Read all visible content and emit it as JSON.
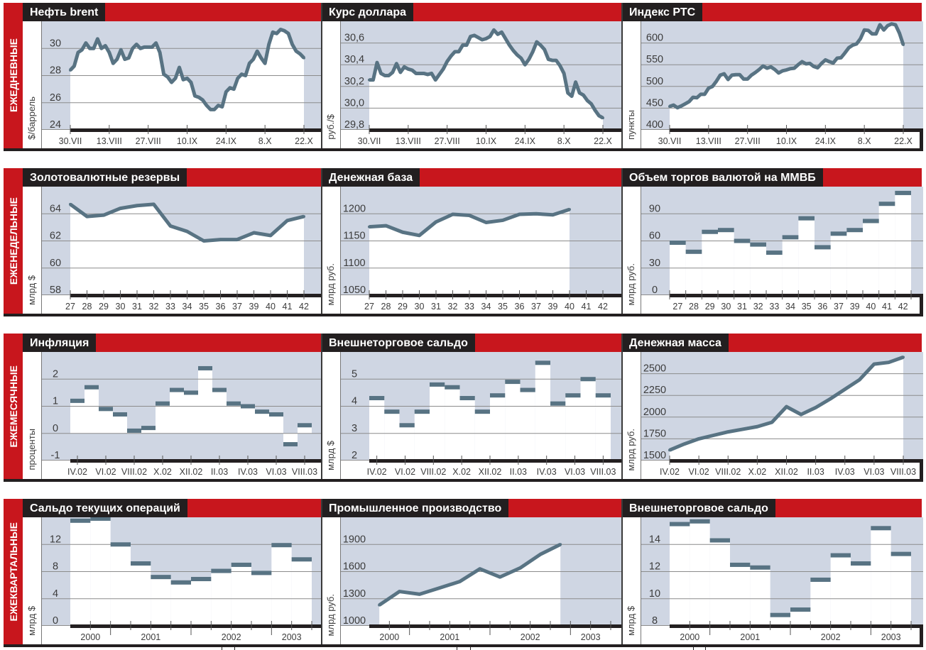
{
  "colors": {
    "brand_red": "#c8161d",
    "title_black": "#231f20",
    "plot_bg": "#cfd6e3",
    "series": "#587383",
    "grid": "#8c8c8c"
  },
  "rows": [
    {
      "period": "ЕЖЕДНЕВНЫЕ"
    },
    {
      "period": "ЕЖЕНЕДЕЛЬНЫЕ"
    },
    {
      "period": "ЕЖЕМЕСЯЧНЫЕ"
    },
    {
      "period": "ЕЖЕКВАРТАЛЬНЫЕ"
    }
  ],
  "chart_data": [
    {
      "type": "line",
      "title": "Нефть brent",
      "ylabel": "$/баррель",
      "ylim": [
        24,
        32
      ],
      "y_ticks": [
        {
          "value": 30,
          "label": "30"
        },
        {
          "value": 28,
          "label": "28"
        },
        {
          "value": 26,
          "label": "26"
        },
        {
          "value": 24,
          "label": "24"
        }
      ],
      "x_tick_labels": [
        "30.VII",
        "13.VIII",
        "27.VIII",
        "10.IX",
        "24.IX",
        "8.X",
        "22.X"
      ],
      "values": [
        28.4,
        28.7,
        29.7,
        29.9,
        30.4,
        30.0,
        30.0,
        30.7,
        30.0,
        30.2,
        29.7,
        28.9,
        29.2,
        29.9,
        29.2,
        29.3,
        30.0,
        30.3,
        30.0,
        30.1,
        30.1,
        30.1,
        30.4,
        29.7,
        28.1,
        27.9,
        27.5,
        27.8,
        28.6,
        27.7,
        27.8,
        27.5,
        26.5,
        26.4,
        26.2,
        25.8,
        25.5,
        25.5,
        25.8,
        25.7,
        26.8,
        27.1,
        27.0,
        27.8,
        28.1,
        28.0,
        28.9,
        29.2,
        29.8,
        29.3,
        28.9,
        30.3,
        31.2,
        31.1,
        31.4,
        31.3,
        31.1,
        30.3,
        29.8,
        29.6,
        29.3
      ]
    },
    {
      "type": "line",
      "title": "Курс доллара",
      "ylabel": "руб./$",
      "ylim": [
        29.8,
        30.8
      ],
      "y_ticks": [
        {
          "value": 30.6,
          "label": "30,6"
        },
        {
          "value": 30.4,
          "label": "30,4"
        },
        {
          "value": 30.2,
          "label": "30,2"
        },
        {
          "value": 30.0,
          "label": "30,0"
        },
        {
          "value": 29.8,
          "label": "29,8"
        }
      ],
      "x_tick_labels": [
        "30.VII",
        "13.VIII",
        "27.VIII",
        "10.IX",
        "24.IX",
        "8.X",
        "22.X"
      ],
      "values": [
        30.26,
        30.26,
        30.42,
        30.32,
        30.3,
        30.3,
        30.33,
        30.41,
        30.33,
        30.38,
        30.36,
        30.35,
        30.32,
        30.32,
        30.32,
        30.31,
        30.32,
        30.26,
        30.31,
        30.36,
        30.43,
        30.48,
        30.52,
        30.52,
        30.58,
        30.58,
        30.66,
        30.67,
        30.65,
        30.63,
        30.64,
        30.66,
        30.72,
        30.68,
        30.7,
        30.64,
        30.58,
        30.53,
        30.49,
        30.46,
        30.4,
        30.45,
        30.52,
        30.61,
        30.58,
        30.54,
        30.45,
        30.44,
        30.44,
        30.39,
        30.32,
        30.14,
        30.11,
        30.24,
        30.14,
        30.12,
        30.07,
        30.04,
        29.98,
        29.93,
        29.91
      ]
    },
    {
      "type": "line",
      "title": "Индекс РТС",
      "ylabel": "пункты",
      "ylim": [
        400,
        650
      ],
      "y_ticks": [
        {
          "value": 600,
          "label": "600"
        },
        {
          "value": 550,
          "label": "550"
        },
        {
          "value": 500,
          "label": "500"
        },
        {
          "value": 450,
          "label": "450"
        },
        {
          "value": 400,
          "label": "400"
        }
      ],
      "x_tick_labels": [
        "30.VII",
        "13.VIII",
        "27.VIII",
        "10.IX",
        "24.IX",
        "8.X",
        "22.X"
      ],
      "values": [
        454,
        457,
        451,
        455,
        460,
        465,
        475,
        474,
        482,
        482,
        496,
        500,
        512,
        526,
        529,
        516,
        526,
        527,
        527,
        517,
        517,
        526,
        532,
        539,
        547,
        542,
        545,
        539,
        531,
        536,
        538,
        541,
        542,
        550,
        557,
        552,
        553,
        546,
        543,
        553,
        561,
        557,
        554,
        565,
        566,
        577,
        589,
        595,
        598,
        610,
        630,
        629,
        621,
        621,
        642,
        630,
        640,
        644,
        642,
        623,
        596
      ]
    },
    {
      "type": "line",
      "title": "Золотовалютные резервы",
      "ylabel": "млрд $",
      "ylim": [
        58,
        66
      ],
      "y_ticks": [
        {
          "value": 64,
          "label": "64"
        },
        {
          "value": 62,
          "label": "62"
        },
        {
          "value": 60,
          "label": "60"
        },
        {
          "value": 58,
          "label": "58"
        }
      ],
      "categories": [
        "27",
        "28",
        "29",
        "30",
        "31",
        "32",
        "33",
        "34",
        "35",
        "36",
        "37",
        "39",
        "40",
        "41",
        "42"
      ],
      "values": [
        64.7,
        63.8,
        63.9,
        64.4,
        64.6,
        64.7,
        63.1,
        62.7,
        62.0,
        62.1,
        62.1,
        62.6,
        62.4,
        63.5,
        63.8
      ]
    },
    {
      "type": "line",
      "title": "Денежная база",
      "ylabel": "млрд руб.",
      "ylim": [
        1050,
        1250
      ],
      "y_ticks": [
        {
          "value": 1200,
          "label": "1200"
        },
        {
          "value": 1150,
          "label": "1150"
        },
        {
          "value": 1100,
          "label": "1100"
        },
        {
          "value": 1050,
          "label": "1050"
        }
      ],
      "categories": [
        "27",
        "28",
        "29",
        "30",
        "31",
        "32",
        "33",
        "34",
        "35",
        "36",
        "37",
        "39",
        "40",
        "41",
        "42"
      ],
      "values": [
        1176,
        1178,
        1166,
        1160,
        1185,
        1199,
        1197,
        1184,
        1188,
        1199,
        1200,
        1198,
        1208,
        null,
        null
      ]
    },
    {
      "type": "bar",
      "title": "Объем торгов валютой на ММВБ",
      "ylabel": "млрд руб.",
      "ylim": [
        0,
        120
      ],
      "y_ticks": [
        {
          "value": 90,
          "label": "90"
        },
        {
          "value": 60,
          "label": "60"
        },
        {
          "value": 30,
          "label": "30"
        },
        {
          "value": 0,
          "label": "0"
        }
      ],
      "categories": [
        "27",
        "28",
        "29",
        "30",
        "31",
        "32",
        "33",
        "34",
        "35",
        "36",
        "37",
        "39",
        "40",
        "41",
        "42"
      ],
      "values": [
        58,
        48,
        70,
        72,
        60,
        56,
        47,
        64,
        85,
        53,
        68,
        72,
        82,
        101,
        113
      ]
    },
    {
      "type": "bar",
      "title": "Инфляция",
      "ylabel": "проценты",
      "ylim": [
        -1,
        3
      ],
      "baseline": 0,
      "y_ticks": [
        {
          "value": 2,
          "label": "2"
        },
        {
          "value": 1,
          "label": "1"
        },
        {
          "value": 0,
          "label": "0"
        },
        {
          "value": -1,
          "label": "-1"
        }
      ],
      "x_tick_labels": [
        "IV.02",
        "VI.02",
        "VIII.02",
        "X.02",
        "XII.02",
        "II.03",
        "IV.03",
        "VI.03",
        "VIII.03"
      ],
      "values": [
        1.2,
        1.7,
        0.9,
        0.7,
        0.1,
        0.2,
        1.1,
        1.6,
        1.5,
        2.4,
        1.6,
        1.1,
        1.0,
        0.8,
        0.7,
        -0.4,
        0.3
      ]
    },
    {
      "type": "bar",
      "title": "Внешнеторговое сальдо",
      "ylabel": "млрд $",
      "ylim": [
        2,
        6
      ],
      "y_ticks": [
        {
          "value": 5,
          "label": "5"
        },
        {
          "value": 4,
          "label": "4"
        },
        {
          "value": 3,
          "label": "3"
        },
        {
          "value": 2,
          "label": "2"
        }
      ],
      "x_tick_labels": [
        "IV.02",
        "VI.02",
        "VIII.02",
        "X.02",
        "XII.02",
        "II.03",
        "IV.03",
        "VI.03",
        "VIII.03"
      ],
      "values": [
        4.3,
        3.8,
        3.3,
        3.8,
        4.8,
        4.7,
        4.3,
        3.8,
        4.4,
        4.9,
        4.6,
        5.6,
        4.1,
        4.4,
        5.0,
        4.4
      ]
    },
    {
      "type": "line",
      "title": "Денежная масса",
      "ylabel": "млрд руб.",
      "ylim": [
        1500,
        2750
      ],
      "y_ticks": [
        {
          "value": 2500,
          "label": "2500"
        },
        {
          "value": 2250,
          "label": "2250"
        },
        {
          "value": 2000,
          "label": "2000"
        },
        {
          "value": 1750,
          "label": "1750"
        },
        {
          "value": 1500,
          "label": "1500"
        }
      ],
      "x_tick_labels": [
        "IV.02",
        "VI.02",
        "VIII.02",
        "X.02",
        "XII.02",
        "II.03",
        "IV.03",
        "VI.03",
        "VIII.03"
      ],
      "values": [
        1620,
        1690,
        1750,
        1790,
        1830,
        1860,
        1890,
        1940,
        2120,
        2030,
        2110,
        2210,
        2320,
        2430,
        2610,
        2630,
        2690
      ]
    },
    {
      "type": "bar",
      "title": "Сальдо текущих операций",
      "ylabel": "млрд $",
      "ylim": [
        0,
        16
      ],
      "y_ticks": [
        {
          "value": 12,
          "label": "12"
        },
        {
          "value": 8,
          "label": "8"
        },
        {
          "value": 4,
          "label": "4"
        },
        {
          "value": 0,
          "label": "0"
        }
      ],
      "year_groups": [
        {
          "label": "2000",
          "quarters": 2
        },
        {
          "label": "2001",
          "quarters": 4
        },
        {
          "label": "2002",
          "quarters": 4
        },
        {
          "label": "2003",
          "quarters": 2
        }
      ],
      "values": [
        15.5,
        15.8,
        12.0,
        9.2,
        7.2,
        6.4,
        6.9,
        8.1,
        9.0,
        7.8,
        11.9,
        9.8
      ]
    },
    {
      "type": "line",
      "title": "Промышленное производство",
      "ylabel": "млрд руб.",
      "ylim": [
        1000,
        2200
      ],
      "y_ticks": [
        {
          "value": 1900,
          "label": "1900"
        },
        {
          "value": 1600,
          "label": "1600"
        },
        {
          "value": 1300,
          "label": "1300"
        },
        {
          "value": 1000,
          "label": "1000"
        }
      ],
      "year_groups": [
        {
          "label": "2000",
          "quarters": 2
        },
        {
          "label": "2001",
          "quarters": 4
        },
        {
          "label": "2002",
          "quarters": 4
        },
        {
          "label": "2003",
          "quarters": 2
        }
      ],
      "values": [
        1230,
        1380,
        1350,
        1420,
        1490,
        1630,
        1540,
        1640,
        1790,
        1900,
        null,
        null
      ]
    },
    {
      "type": "bar",
      "title": "Внешнеторговое сальдо",
      "ylabel": "млрд $",
      "ylim": [
        8,
        16
      ],
      "y_ticks": [
        {
          "value": 14,
          "label": "14"
        },
        {
          "value": 12,
          "label": "12"
        },
        {
          "value": 10,
          "label": "10"
        },
        {
          "value": 8,
          "label": "8"
        }
      ],
      "year_groups": [
        {
          "label": "2000",
          "quarters": 2
        },
        {
          "label": "2001",
          "quarters": 4
        },
        {
          "label": "2002",
          "quarters": 4
        },
        {
          "label": "2003",
          "quarters": 2
        }
      ],
      "values": [
        15.5,
        15.7,
        14.3,
        12.5,
        12.3,
        8.8,
        9.2,
        11.4,
        13.2,
        12.6,
        15.2,
        13.3
      ]
    }
  ]
}
